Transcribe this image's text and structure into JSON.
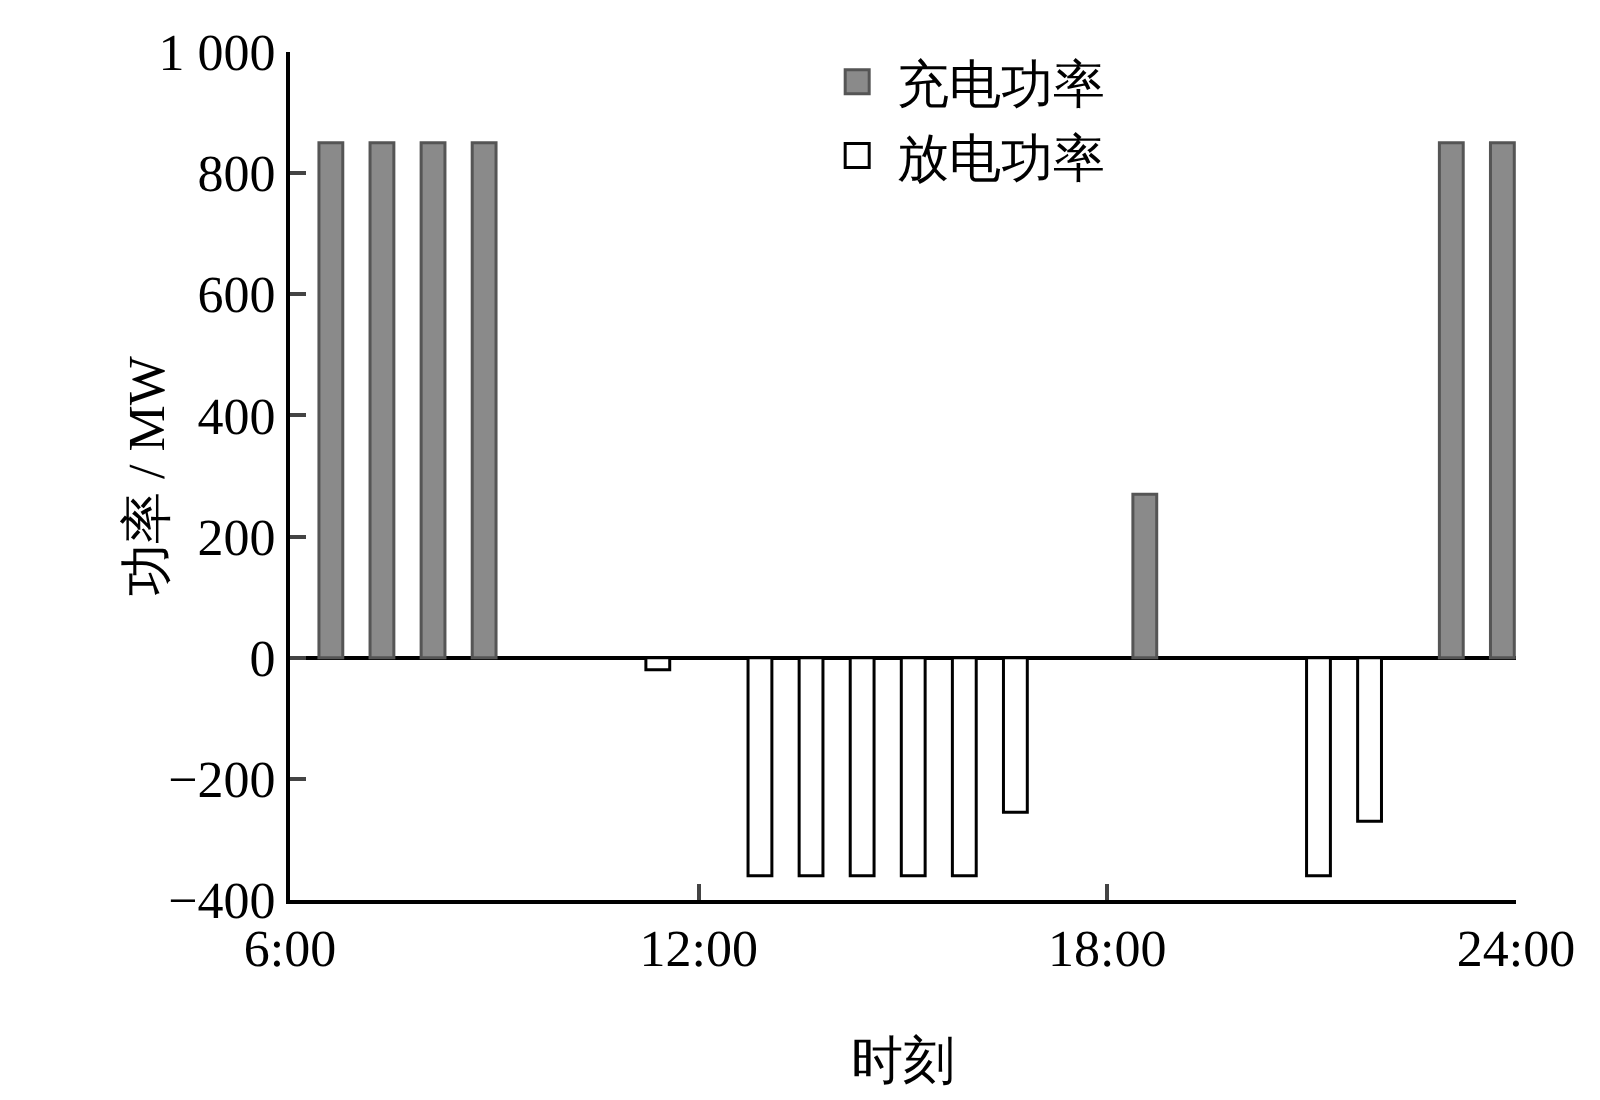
{
  "chart_data": {
    "type": "bar",
    "xlabel": "时刻",
    "ylabel": "功率 / MW",
    "series": [
      {
        "name": "充电功率",
        "color": "#8a8a8a",
        "x": [
          6.6,
          7.35,
          8.1,
          8.85,
          18.55,
          23.05,
          23.8
        ],
        "values": [
          850,
          850,
          850,
          850,
          270,
          850,
          850
        ]
      },
      {
        "name": "放电功率",
        "color": "#ffffff",
        "x": [
          11.4,
          12.9,
          13.65,
          14.4,
          15.15,
          15.9,
          16.65,
          21.1,
          21.85
        ],
        "values": [
          -20,
          -360,
          -360,
          -360,
          -360,
          -360,
          -255,
          -360,
          -270
        ]
      }
    ],
    "xlim": [
      6,
      24
    ],
    "xticks": [
      {
        "value": 6,
        "label": "6:00"
      },
      {
        "value": 12,
        "label": "12:00"
      },
      {
        "value": 18,
        "label": "18:00"
      },
      {
        "value": 24,
        "label": "24:00"
      }
    ],
    "ylim": [
      -400,
      1000
    ],
    "yticks": [
      {
        "value": -400,
        "label": "−400"
      },
      {
        "value": -200,
        "label": "−200"
      },
      0,
      200,
      400,
      600,
      800,
      {
        "value": 1000,
        "label": "1 000"
      }
    ],
    "legend": "top"
  }
}
